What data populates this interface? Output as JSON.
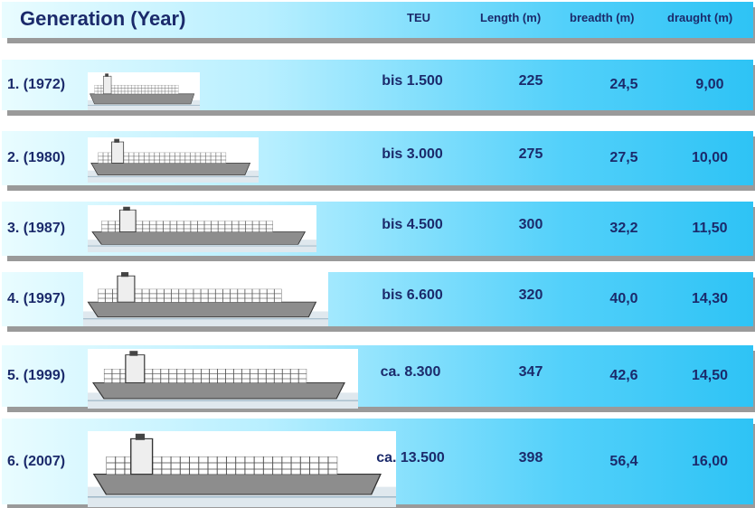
{
  "header": {
    "title": "Generation (Year)",
    "columns": [
      "TEU",
      "Length (m)",
      "breadth (m)",
      "draught (m)"
    ]
  },
  "table": {
    "rows": [
      [
        "1. (1972)",
        "bis 1.500",
        "225",
        "24,5",
        "9,00"
      ],
      [
        "2. (1980)",
        "bis 3.000",
        "275",
        "27,5",
        "10,00"
      ],
      [
        "3. (1987)",
        "bis 4.500",
        "300",
        "32,2",
        "11,50"
      ],
      [
        "4. (1997)",
        "bis 6.600",
        "320",
        "40,0",
        "14,30"
      ],
      [
        "5. (1999)",
        "ca. 8.300",
        "347",
        "42,6",
        "14,50"
      ],
      [
        "6. (2007)",
        "ca. 13.500",
        "398",
        "56,4",
        "16,00"
      ]
    ]
  }
}
